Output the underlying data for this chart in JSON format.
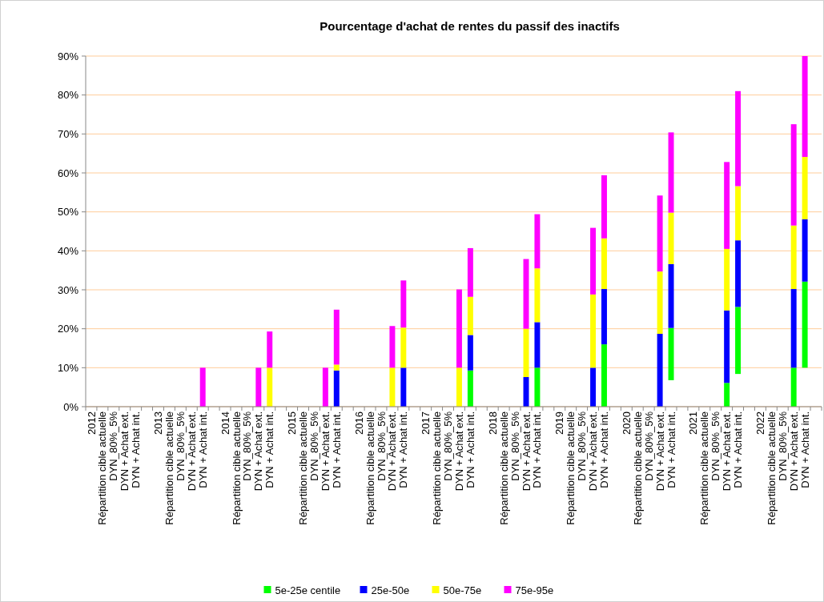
{
  "chart_data": {
    "type": "bar",
    "title": "Pourcentage d'achat de rentes du passif des inactifs",
    "categories": [
      "2012",
      "Répartition cible actuelle",
      "DYN_80%_5%",
      "DYN + Achat ext.",
      "DYN + Achat int.",
      null,
      "2013",
      "Répartition cible actuelle",
      "DYN_80%_5%",
      "DYN + Achat ext.",
      "DYN + Achat int.",
      null,
      "2014",
      "Répartition cible actuelle",
      "DYN_80%_5%",
      "DYN + Achat ext.",
      "DYN + Achat int.",
      null,
      "2015",
      "Répartition cible actuelle",
      "DYN_80%_5%",
      "DYN + Achat ext.",
      "DYN + Achat int.",
      null,
      "2016",
      "Répartition cible actuelle",
      "DYN_80%_5%",
      "DYN + Achat ext.",
      "DYN + Achat int.",
      null,
      "2017",
      "Répartition cible actuelle",
      "DYN_80%_5%",
      "DYN + Achat ext.",
      "DYN + Achat int.",
      null,
      "2018",
      "Répartition cible actuelle",
      "DYN_80%_5%",
      "DYN + Achat ext.",
      "DYN + Achat int.",
      null,
      "2019",
      "Répartition cible actuelle",
      "DYN_80%_5%",
      "DYN + Achat ext.",
      "DYN + Achat int.",
      null,
      "2020",
      "Répartition cible actuelle",
      "DYN_80%_5%",
      "DYN + Achat ext.",
      "DYN + Achat int.",
      null,
      "2021",
      "Répartition cible actuelle",
      "DYN_80%_5%",
      "DYN + Achat ext.",
      "DYN + Achat int.",
      null,
      "2022",
      "Répartition cible actuelle",
      "DYN_80%_5%",
      "DYN + Achat ext.",
      "DYN + Achat int.",
      null
    ],
    "stacked": true,
    "series": [
      {
        "name": "5e-25e centile",
        "color": "#00ff00",
        "base": [
          null,
          null,
          null,
          null,
          null,
          null,
          null,
          null,
          null,
          null,
          null,
          null,
          null,
          null,
          null,
          null,
          null,
          null,
          null,
          null,
          null,
          null,
          null,
          null,
          null,
          null,
          null,
          null,
          null,
          null,
          null,
          null,
          null,
          null,
          0,
          null,
          null,
          null,
          null,
          null,
          0,
          null,
          null,
          null,
          null,
          null,
          0,
          null,
          null,
          null,
          null,
          null,
          6.8,
          null,
          null,
          null,
          null,
          0,
          8.4,
          null,
          null,
          null,
          null,
          0,
          10,
          null
        ],
        "values": [
          null,
          null,
          null,
          null,
          null,
          null,
          null,
          null,
          null,
          null,
          null,
          null,
          null,
          null,
          null,
          null,
          null,
          null,
          null,
          null,
          null,
          null,
          null,
          null,
          null,
          null,
          null,
          null,
          null,
          null,
          null,
          null,
          null,
          null,
          9.3,
          null,
          null,
          null,
          null,
          null,
          10,
          null,
          null,
          null,
          null,
          null,
          16,
          null,
          null,
          null,
          null,
          null,
          13.4,
          null,
          null,
          null,
          null,
          6.1,
          17.2,
          null,
          null,
          null,
          null,
          10,
          22.1,
          null
        ]
      },
      {
        "name": "25e-50e",
        "color": "#0000ff",
        "values": [
          null,
          null,
          null,
          null,
          null,
          null,
          null,
          null,
          null,
          null,
          null,
          null,
          null,
          null,
          null,
          null,
          null,
          null,
          null,
          null,
          null,
          null,
          9.3,
          null,
          null,
          null,
          null,
          null,
          10,
          null,
          null,
          null,
          null,
          null,
          9.1,
          null,
          null,
          null,
          null,
          7.6,
          11.7,
          null,
          null,
          null,
          null,
          10,
          14.2,
          null,
          null,
          null,
          null,
          18.7,
          16.4,
          null,
          null,
          null,
          null,
          18.6,
          17.1,
          null,
          null,
          null,
          null,
          20.2,
          16,
          null
        ]
      },
      {
        "name": "50e-75e",
        "color": "#ffff00",
        "values": [
          null,
          null,
          null,
          null,
          null,
          null,
          null,
          null,
          null,
          null,
          null,
          null,
          null,
          null,
          null,
          null,
          10,
          null,
          null,
          null,
          null,
          null,
          1.5,
          null,
          null,
          null,
          null,
          10,
          10.3,
          null,
          null,
          null,
          null,
          10,
          9.8,
          null,
          null,
          null,
          null,
          12.4,
          13.8,
          null,
          null,
          null,
          null,
          18.8,
          13,
          null,
          null,
          null,
          null,
          16,
          13.2,
          null,
          null,
          null,
          null,
          15.8,
          13.9,
          null,
          null,
          null,
          null,
          16.3,
          16,
          null
        ]
      },
      {
        "name": "75e-95e",
        "color": "#ff00ff",
        "values": [
          null,
          null,
          null,
          null,
          null,
          null,
          null,
          null,
          null,
          null,
          10,
          null,
          null,
          null,
          null,
          10,
          9.3,
          null,
          null,
          null,
          null,
          10,
          14.1,
          null,
          null,
          null,
          null,
          10.7,
          12.1,
          null,
          null,
          null,
          null,
          20.1,
          12.5,
          null,
          null,
          null,
          null,
          17.9,
          13.9,
          null,
          null,
          null,
          null,
          17.1,
          16.2,
          null,
          null,
          null,
          null,
          19.5,
          20.6,
          null,
          null,
          null,
          null,
          22.3,
          24.4,
          null,
          null,
          null,
          null,
          26,
          25.9,
          null
        ]
      }
    ],
    "ylim": [
      0,
      90
    ],
    "yticks": [
      {
        "value": 0,
        "label": "0%"
      },
      {
        "value": 10,
        "label": "10%"
      },
      {
        "value": 20,
        "label": "20%"
      },
      {
        "value": 30,
        "label": "30%"
      },
      {
        "value": 40,
        "label": "40%"
      },
      {
        "value": 50,
        "label": "50%"
      },
      {
        "value": 60,
        "label": "60%"
      },
      {
        "value": 70,
        "label": "70%"
      },
      {
        "value": 80,
        "label": "80%"
      },
      {
        "value": 90,
        "label": "90%"
      }
    ],
    "grid": "y",
    "legend": "bottom"
  }
}
